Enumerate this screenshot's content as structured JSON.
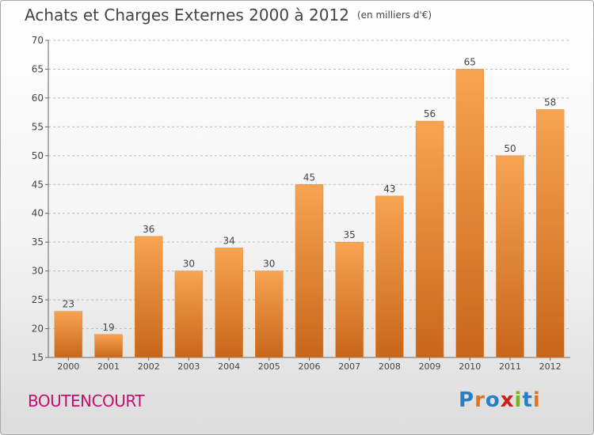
{
  "title": "Achats et Charges Externes 2000 à 2012",
  "unit_label": "(en milliers d'€)",
  "commune": "BOUTENCOURT",
  "logo": {
    "text": "Proxiti",
    "letter_colors": [
      "#2a7fc4",
      "#e8721c",
      "#2a7fc4",
      "#d11c1c",
      "#7ab317",
      "#2a7fc4",
      "#e8721c"
    ]
  },
  "colors": {
    "bar_top": "#f7a452",
    "bar_bottom": "#c8661a",
    "title": "#444444",
    "commune": "#c01070",
    "grid": "#bbbbbb"
  },
  "chart_data": {
    "type": "bar",
    "title": "Achats et Charges Externes 2000 à 2012",
    "subtitle": "(en milliers d'€)",
    "xlabel": "",
    "ylabel": "",
    "categories": [
      "2000",
      "2001",
      "2002",
      "2003",
      "2004",
      "2005",
      "2006",
      "2007",
      "2008",
      "2009",
      "2010",
      "2011",
      "2012"
    ],
    "values": [
      23,
      19,
      36,
      30,
      34,
      30,
      45,
      35,
      43,
      56,
      65,
      50,
      58
    ],
    "ylim": [
      15,
      70
    ],
    "yticks": [
      15,
      20,
      25,
      30,
      35,
      40,
      45,
      50,
      55,
      60,
      65,
      70
    ],
    "grid": true,
    "data_labels": true
  }
}
